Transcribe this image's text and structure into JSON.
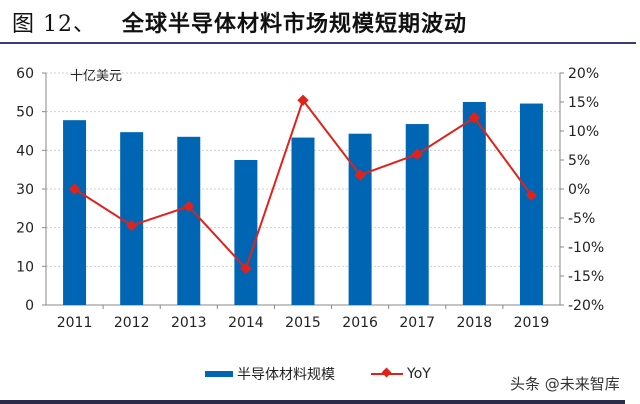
{
  "title": {
    "prefix": "图 12、",
    "text": "全球半导体材料市场规模短期波动"
  },
  "watermark": "头条 @未来智库",
  "colors": {
    "bar": "#0066b3",
    "line": "#e0221b",
    "rule": "#3c3c74"
  },
  "chart_data": {
    "type": "bar+line",
    "unit_label": "十亿美元",
    "categories": [
      "2011",
      "2012",
      "2013",
      "2014",
      "2015",
      "2016",
      "2017",
      "2018",
      "2019"
    ],
    "series": [
      {
        "name": "半导体材料规模",
        "type": "bar",
        "axis": "left",
        "values": [
          47.8,
          44.7,
          43.5,
          37.5,
          43.3,
          44.3,
          46.8,
          52.5,
          52.1
        ]
      },
      {
        "name": "YoY",
        "type": "line",
        "axis": "right",
        "values": [
          0.0,
          -6.3,
          -3.0,
          -13.7,
          15.3,
          2.4,
          6.0,
          12.3,
          -1.1
        ]
      }
    ],
    "y_left": {
      "range": [
        0,
        60
      ],
      "ticks": [
        "0",
        "10",
        "20",
        "30",
        "40",
        "50",
        "60"
      ]
    },
    "y_right": {
      "range": [
        -20,
        20
      ],
      "ticks": [
        "-20%",
        "-15%",
        "-10%",
        "-5%",
        "0%",
        "5%",
        "10%",
        "15%",
        "20%"
      ]
    },
    "grid": true,
    "legend_position": "bottom"
  }
}
